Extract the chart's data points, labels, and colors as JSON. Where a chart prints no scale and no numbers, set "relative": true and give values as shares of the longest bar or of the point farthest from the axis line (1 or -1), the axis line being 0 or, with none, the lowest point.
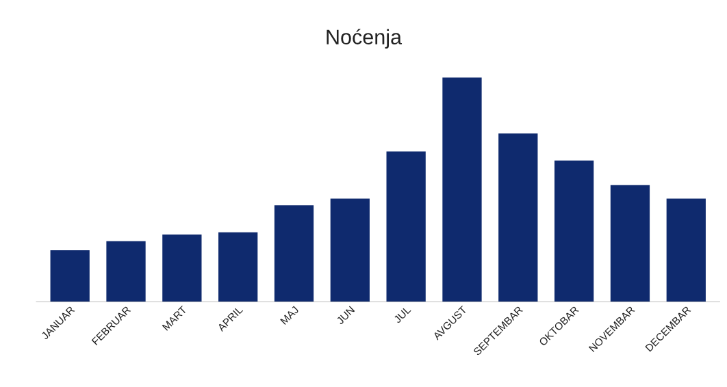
{
  "chart_data": {
    "type": "bar",
    "title": "Noćenja",
    "relative": true,
    "categories": [
      "JANUAR",
      "FEBRUAR",
      "MART",
      "APRIL",
      "MAJ",
      "JUN",
      "JUL",
      "AVGUST",
      "SEPTEMBAR",
      "OKTOBAR",
      "NOVEMBAR",
      "DECEMBAR"
    ],
    "values": [
      0.23,
      0.27,
      0.3,
      0.31,
      0.43,
      0.46,
      0.67,
      1,
      0.75,
      0.63,
      0.52,
      0.46
    ],
    "color": "#0f2a6e",
    "grid": false,
    "legend": false
  }
}
